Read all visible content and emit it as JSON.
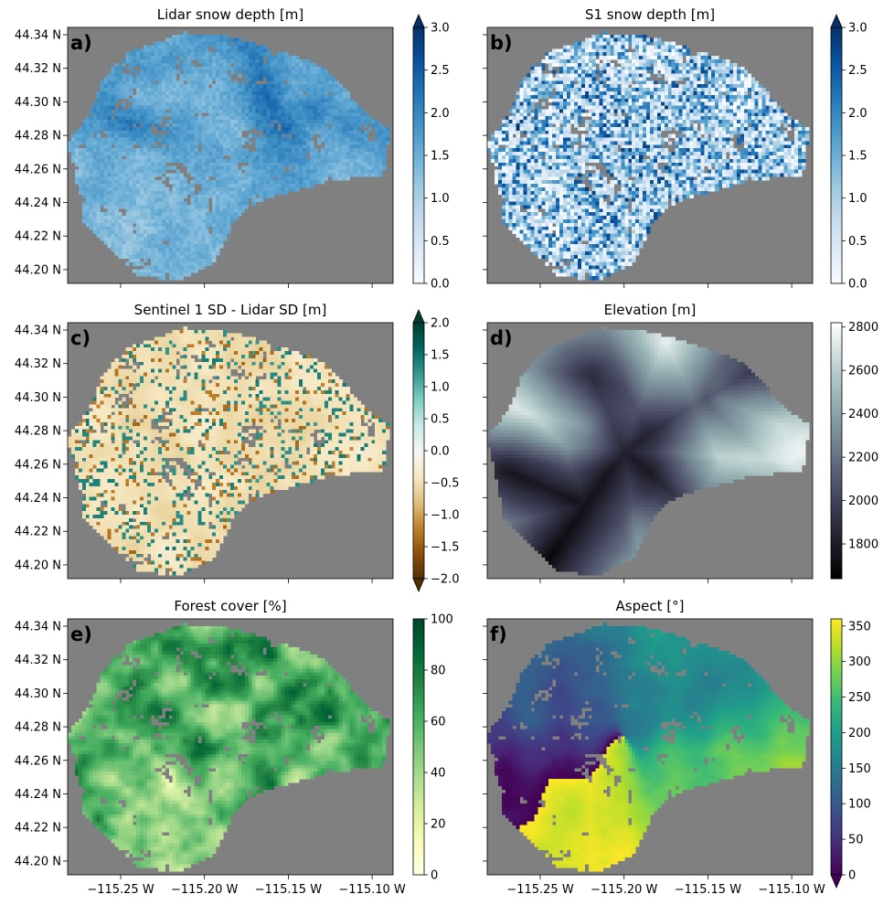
{
  "figure": {
    "lat_ticks": [
      "44.34 N",
      "44.32 N",
      "44.30 N",
      "44.28 N",
      "44.26 N",
      "44.24 N",
      "44.22 N",
      "44.20 N"
    ],
    "lon_ticks": [
      "−115.25 W",
      "−115.20 W",
      "−115.15 W",
      "−115.10 W"
    ]
  },
  "chart_data": [
    {
      "type": "heatmap",
      "panel_label": "a)",
      "title": "Lidar snow depth [m]",
      "xlabel": "",
      "ylabel": "",
      "colormap": "Blues",
      "colorbar_ticks": [
        "0.0",
        "0.5",
        "1.0",
        "1.5",
        "2.0",
        "2.5",
        "3.0"
      ],
      "colorbar_range": [
        0,
        3
      ],
      "colorbar_extend": "max",
      "lat_range": [
        44.195,
        44.345
      ],
      "lon_range": [
        -115.283,
        -115.087
      ]
    },
    {
      "type": "heatmap",
      "panel_label": "b)",
      "title": "S1 snow depth [m]",
      "xlabel": "",
      "ylabel": "",
      "colormap": "Blues",
      "colorbar_ticks": [
        "0.0",
        "0.5",
        "1.0",
        "1.5",
        "2.0",
        "2.5",
        "3.0"
      ],
      "colorbar_range": [
        0,
        3
      ],
      "colorbar_extend": "max",
      "lat_range": [
        44.195,
        44.345
      ],
      "lon_range": [
        -115.283,
        -115.087
      ]
    },
    {
      "type": "heatmap",
      "panel_label": "c)",
      "title": "Sentinel 1 SD - Lidar SD [m]",
      "xlabel": "",
      "ylabel": "",
      "colormap": "BrBG",
      "colorbar_ticks": [
        "2.0",
        "1.5",
        "1.0",
        "0.5",
        "0.0",
        "−0.5",
        "−1.0",
        "−1.5",
        "−2.0"
      ],
      "colorbar_range": [
        -2,
        2
      ],
      "colorbar_extend": "both",
      "lat_range": [
        44.195,
        44.345
      ],
      "lon_range": [
        -115.283,
        -115.087
      ]
    },
    {
      "type": "heatmap",
      "panel_label": "d)",
      "title": "Elevation [m]",
      "xlabel": "",
      "ylabel": "",
      "colormap": "bone",
      "colorbar_ticks": [
        "2800",
        "2600",
        "2400",
        "2200",
        "2000",
        "1800"
      ],
      "colorbar_range": [
        1640,
        2820
      ],
      "colorbar_extend": "neither",
      "lat_range": [
        44.195,
        44.345
      ],
      "lon_range": [
        -115.283,
        -115.087
      ]
    },
    {
      "type": "heatmap",
      "panel_label": "e)",
      "title": "Forest cover [%]",
      "xlabel": "",
      "ylabel": "",
      "colormap": "YlGn",
      "colorbar_ticks": [
        "100",
        "80",
        "60",
        "40",
        "20",
        "0"
      ],
      "colorbar_range": [
        0,
        100
      ],
      "colorbar_extend": "neither",
      "lat_range": [
        44.195,
        44.345
      ],
      "lon_range": [
        -115.283,
        -115.087
      ]
    },
    {
      "type": "heatmap",
      "panel_label": "f)",
      "title": "Aspect [°]",
      "xlabel": "",
      "ylabel": "",
      "colormap": "viridis",
      "colorbar_ticks": [
        "350",
        "300",
        "250",
        "200",
        "150",
        "100",
        "50",
        "0"
      ],
      "colorbar_range": [
        0,
        360
      ],
      "colorbar_extend": "min",
      "lat_range": [
        44.195,
        44.345
      ],
      "lon_range": [
        -115.283,
        -115.087
      ]
    }
  ],
  "colors": {
    "nodata": "#808080",
    "blues": [
      "#f7fbff",
      "#deebf7",
      "#c6dbef",
      "#9ecae1",
      "#6baed6",
      "#4292c6",
      "#2171b5",
      "#08519c",
      "#08306b"
    ],
    "brbg": [
      "#543005",
      "#8c510a",
      "#bf812d",
      "#dfc27d",
      "#f6e8c3",
      "#f5f5f5",
      "#c7eae5",
      "#80cdc1",
      "#35978f",
      "#01665e",
      "#003c30"
    ],
    "bone": [
      "#000000",
      "#1f1f2b",
      "#3d3d55",
      "#5c6478",
      "#7a8f9a",
      "#99b5b5",
      "#c8d9d9",
      "#ffffff"
    ],
    "ylgn": [
      "#ffffe5",
      "#f7fcb9",
      "#d9f0a3",
      "#addd8e",
      "#78c679",
      "#41ab5d",
      "#238443",
      "#006837",
      "#004529"
    ],
    "viridis": [
      "#440154",
      "#482878",
      "#3e4989",
      "#31688e",
      "#26828e",
      "#1f9e89",
      "#35b779",
      "#6ece58",
      "#b5de2b",
      "#fde725"
    ]
  }
}
